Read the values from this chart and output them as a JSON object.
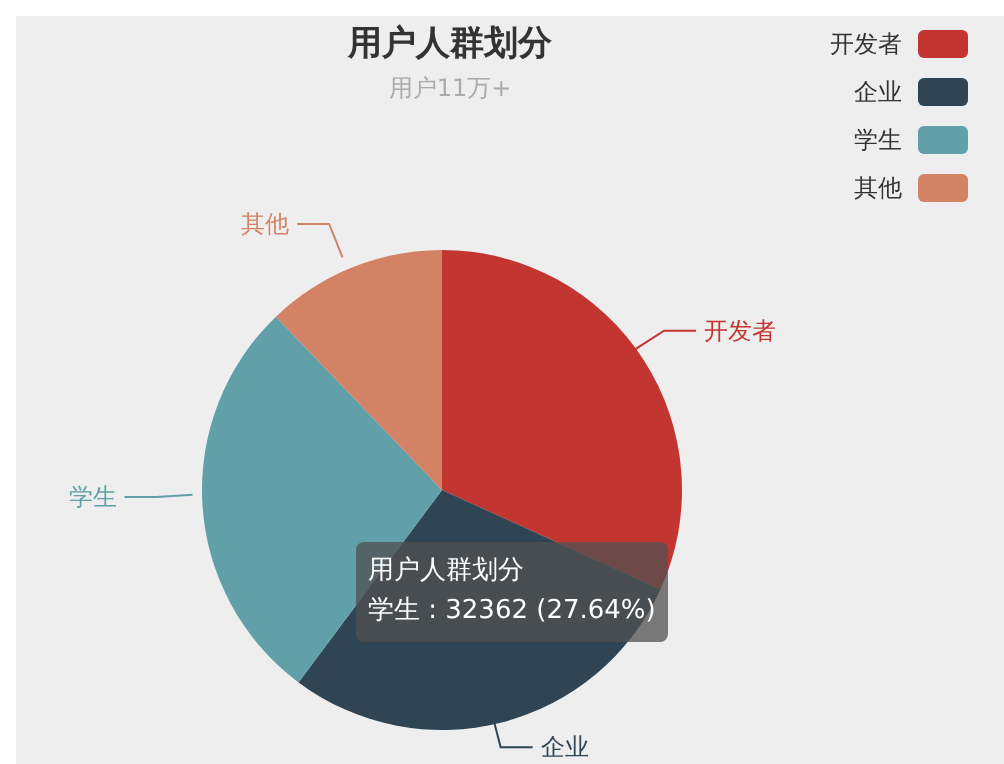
{
  "chart_data": {
    "type": "pie",
    "title": "用户人群划分",
    "subtitle": "用户11万+",
    "categories": [
      "开发者",
      "企业",
      "学生",
      "其他"
    ],
    "values": [
      31.8,
      28.4,
      27.64,
      12.16
    ],
    "colors": [
      "#c23531",
      "#2f4554",
      "#61a0a8",
      "#d48265"
    ],
    "legend": "top right",
    "annotations": [
      "用户人群划分",
      "学生 : 32362 (27.64%)"
    ]
  }
}
